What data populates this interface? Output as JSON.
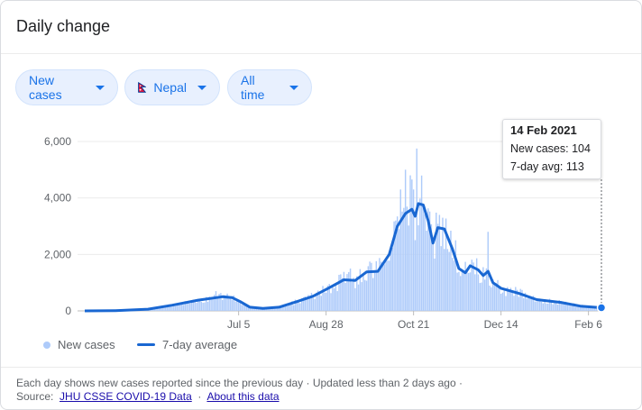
{
  "card": {
    "title": "Daily change"
  },
  "filters": {
    "metric": "New cases",
    "location": "Nepal",
    "period": "All time",
    "flag_icon": "nepal-flag-icon"
  },
  "tooltip": {
    "date": "14 Feb 2021",
    "new_cases": "New cases: 104",
    "avg": "7-day avg: 113"
  },
  "legend": {
    "bars": "New cases",
    "line": "7-day average"
  },
  "footer": {
    "note": "Each day shows new cases reported since the previous day · Updated less than 2 days ago ·",
    "source_label": "Source:",
    "source_link": "JHU CSSE COVID-19 Data",
    "separator": "·",
    "about_link": "About this data"
  },
  "colors": {
    "bars": "#aecbfa",
    "line": "#1967d2",
    "accent": "#1a73e8"
  },
  "chart_data": {
    "type": "bar",
    "title": "",
    "xlabel": "",
    "ylabel": "",
    "x_ticks": [
      "Jul 5",
      "Aug 28",
      "Oct 21",
      "Dec 14",
      "Feb 6"
    ],
    "y_ticks": [
      "0",
      "2,000",
      "4,000",
      "6,000"
    ],
    "ylim": [
      0,
      6000
    ],
    "grid": true,
    "legend_position": "bottom-left",
    "x_range": [
      "2020-04-01",
      "2021-02-14"
    ],
    "series": [
      {
        "name": "7-day average",
        "type": "line",
        "points": [
          [
            "2020-04-01",
            0
          ],
          [
            "2020-04-20",
            10
          ],
          [
            "2020-05-10",
            60
          ],
          [
            "2020-05-25",
            200
          ],
          [
            "2020-06-10",
            380
          ],
          [
            "2020-06-25",
            500
          ],
          [
            "2020-07-01",
            470
          ],
          [
            "2020-07-06",
            330
          ],
          [
            "2020-07-12",
            130
          ],
          [
            "2020-07-20",
            90
          ],
          [
            "2020-07-30",
            130
          ],
          [
            "2020-08-10",
            330
          ],
          [
            "2020-08-20",
            520
          ],
          [
            "2020-08-30",
            820
          ],
          [
            "2020-09-08",
            1100
          ],
          [
            "2020-09-15",
            1080
          ],
          [
            "2020-09-22",
            1380
          ],
          [
            "2020-09-29",
            1400
          ],
          [
            "2020-10-06",
            2000
          ],
          [
            "2020-10-11",
            3000
          ],
          [
            "2020-10-16",
            3450
          ],
          [
            "2020-10-20",
            3600
          ],
          [
            "2020-10-22",
            3350
          ],
          [
            "2020-10-24",
            3800
          ],
          [
            "2020-10-27",
            3750
          ],
          [
            "2020-10-30",
            3200
          ],
          [
            "2020-11-02",
            2400
          ],
          [
            "2020-11-05",
            2950
          ],
          [
            "2020-11-09",
            2900
          ],
          [
            "2020-11-14",
            2200
          ],
          [
            "2020-11-18",
            1500
          ],
          [
            "2020-11-22",
            1350
          ],
          [
            "2020-11-25",
            1600
          ],
          [
            "2020-11-30",
            1450
          ],
          [
            "2020-12-03",
            1250
          ],
          [
            "2020-12-06",
            1400
          ],
          [
            "2020-12-09",
            1000
          ],
          [
            "2020-12-14",
            800
          ],
          [
            "2020-12-25",
            620
          ],
          [
            "2021-01-05",
            400
          ],
          [
            "2021-01-20",
            300
          ],
          [
            "2021-02-01",
            170
          ],
          [
            "2021-02-14",
            113
          ]
        ]
      },
      {
        "name": "New cases",
        "type": "bar",
        "spikes": [
          [
            "2020-10-16",
            5000
          ],
          [
            "2020-10-13",
            4300
          ],
          [
            "2020-10-19",
            4800
          ],
          [
            "2020-10-23",
            5750
          ],
          [
            "2020-10-21",
            4300
          ],
          [
            "2020-10-10",
            3200
          ],
          [
            "2020-11-06",
            3400
          ],
          [
            "2020-11-08",
            3300
          ],
          [
            "2020-12-06",
            2800
          ],
          [
            "2020-11-16",
            2500
          ],
          [
            "2020-09-25",
            1700
          ],
          [
            "2020-09-12",
            1500
          ],
          [
            "2020-06-21",
            700
          ],
          [
            "2021-02-14",
            104
          ]
        ]
      }
    ]
  }
}
